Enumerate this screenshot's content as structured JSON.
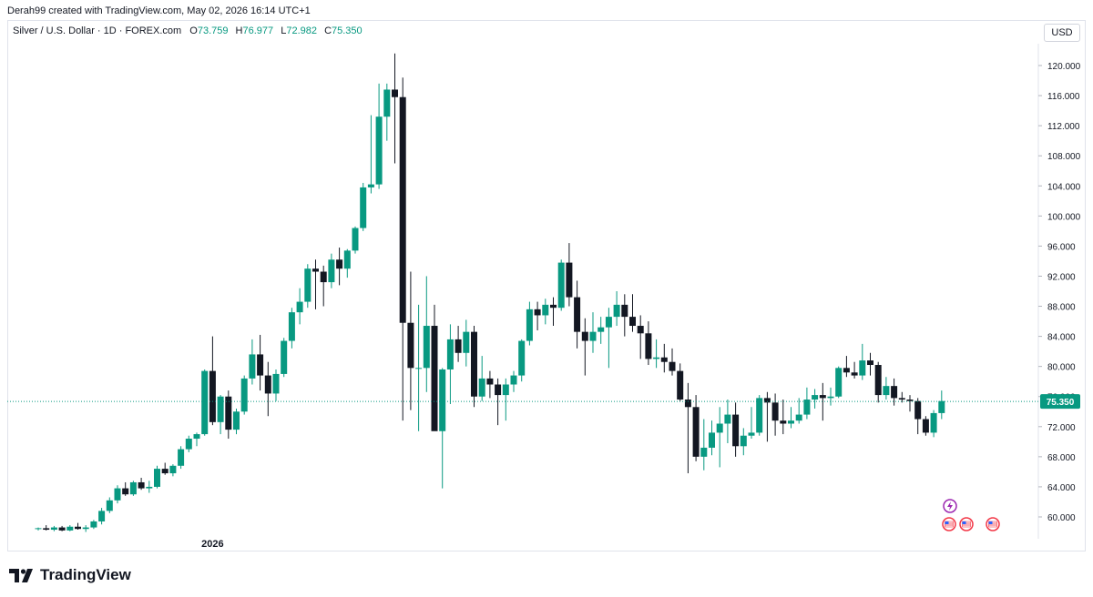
{
  "header": {
    "attribution": "Derah99 created with TradingView.com, May 02, 2026 16:14 UTC+1"
  },
  "legend": {
    "symbol": "Silver / U.S. Dollar · 1D · FOREX.com",
    "o_label": "O",
    "o_value": "73.759",
    "h_label": "H",
    "h_value": "76.977",
    "l_label": "L",
    "l_value": "72.982",
    "c_label": "C",
    "c_value": "75.350"
  },
  "currency_button": "USD",
  "footer": {
    "brand": "TradingView"
  },
  "colors": {
    "up": "#089981",
    "down": "#131722",
    "price_line": "#089981"
  },
  "chart_data": {
    "type": "candlestick",
    "x_labels": [
      {
        "index": 22,
        "label": "2026"
      }
    ],
    "y_ticks": [
      "60.000",
      "64.000",
      "68.000",
      "72.000",
      "76.000",
      "80.000",
      "84.000",
      "88.000",
      "92.000",
      "96.000",
      "100.000",
      "104.000",
      "108.000",
      "112.000",
      "116.000",
      "120.000"
    ],
    "ylim": [
      57.5,
      122.0
    ],
    "last_price": 75.35,
    "last_price_label": "75.350",
    "candles": [
      [
        58.4,
        58.6,
        58.2,
        58.5
      ],
      [
        58.5,
        58.9,
        58.2,
        58.3
      ],
      [
        58.3,
        58.8,
        58.1,
        58.6
      ],
      [
        58.6,
        58.8,
        58.1,
        58.2
      ],
      [
        58.2,
        58.9,
        58.1,
        58.7
      ],
      [
        58.7,
        59.2,
        58.3,
        58.4
      ],
      [
        58.4,
        58.9,
        58.0,
        58.6
      ],
      [
        58.6,
        59.6,
        58.4,
        59.4
      ],
      [
        59.4,
        61.2,
        59.0,
        60.8
      ],
      [
        60.8,
        62.6,
        60.5,
        62.2
      ],
      [
        62.2,
        64.2,
        61.8,
        63.8
      ],
      [
        63.8,
        64.6,
        62.8,
        63.0
      ],
      [
        63.0,
        64.8,
        62.8,
        64.6
      ],
      [
        64.6,
        65.2,
        63.6,
        63.8
      ],
      [
        63.8,
        64.8,
        63.2,
        64.0
      ],
      [
        64.0,
        66.8,
        63.8,
        66.4
      ],
      [
        66.4,
        67.2,
        65.6,
        65.8
      ],
      [
        65.8,
        67.0,
        65.4,
        66.8
      ],
      [
        66.8,
        69.4,
        66.4,
        69.0
      ],
      [
        69.0,
        70.8,
        68.6,
        70.4
      ],
      [
        70.4,
        71.2,
        69.4,
        71.0
      ],
      [
        71.0,
        79.6,
        70.8,
        79.4
      ],
      [
        79.4,
        84.0,
        72.2,
        72.6
      ],
      [
        72.6,
        76.2,
        71.0,
        76.0
      ],
      [
        76.0,
        76.8,
        70.4,
        71.6
      ],
      [
        71.6,
        74.4,
        71.0,
        74.0
      ],
      [
        74.0,
        78.8,
        73.6,
        78.4
      ],
      [
        78.4,
        83.6,
        77.6,
        81.6
      ],
      [
        81.6,
        84.2,
        76.8,
        78.8
      ],
      [
        78.8,
        80.6,
        73.4,
        76.4
      ],
      [
        76.4,
        79.6,
        75.4,
        79.0
      ],
      [
        79.0,
        83.8,
        78.6,
        83.4
      ],
      [
        83.4,
        87.8,
        82.4,
        87.2
      ],
      [
        87.2,
        90.4,
        85.6,
        88.6
      ],
      [
        88.6,
        93.6,
        87.8,
        93.0
      ],
      [
        93.0,
        94.2,
        87.6,
        92.6
      ],
      [
        92.6,
        93.4,
        88.0,
        91.2
      ],
      [
        91.2,
        95.0,
        90.4,
        94.2
      ],
      [
        94.2,
        95.8,
        90.8,
        93.0
      ],
      [
        93.0,
        95.6,
        91.8,
        95.4
      ],
      [
        95.4,
        98.6,
        95.0,
        98.4
      ],
      [
        98.4,
        104.4,
        98.0,
        103.8
      ],
      [
        103.8,
        113.4,
        103.0,
        104.2
      ],
      [
        104.2,
        117.6,
        103.6,
        113.2
      ],
      [
        113.2,
        117.6,
        110.0,
        116.8
      ],
      [
        116.8,
        121.6,
        107.0,
        115.8
      ],
      [
        115.8,
        118.4,
        72.8,
        85.8
      ],
      [
        85.8,
        92.6,
        74.2,
        79.8
      ],
      [
        79.8,
        88.2,
        71.4,
        79.8
      ],
      [
        79.8,
        92.0,
        76.6,
        85.4
      ],
      [
        85.4,
        88.2,
        71.6,
        71.4
      ],
      [
        71.4,
        79.8,
        63.8,
        79.6
      ],
      [
        79.6,
        85.6,
        75.0,
        83.6
      ],
      [
        83.6,
        85.4,
        80.6,
        81.8
      ],
      [
        81.8,
        86.2,
        80.0,
        84.6
      ],
      [
        84.6,
        85.4,
        74.6,
        76.0
      ],
      [
        76.0,
        81.4,
        75.4,
        78.4
      ],
      [
        78.4,
        79.4,
        75.8,
        77.6
      ],
      [
        77.6,
        78.4,
        72.2,
        76.2
      ],
      [
        76.2,
        78.4,
        72.8,
        77.6
      ],
      [
        77.6,
        79.4,
        76.6,
        78.8
      ],
      [
        78.8,
        83.6,
        78.0,
        83.4
      ],
      [
        83.4,
        88.6,
        82.8,
        87.6
      ],
      [
        87.6,
        88.6,
        84.8,
        86.8
      ],
      [
        86.8,
        89.0,
        85.6,
        88.2
      ],
      [
        88.2,
        89.2,
        85.4,
        87.8
      ],
      [
        87.8,
        94.2,
        87.4,
        93.8
      ],
      [
        93.8,
        96.4,
        88.0,
        89.2
      ],
      [
        89.2,
        91.4,
        82.4,
        84.6
      ],
      [
        84.6,
        86.4,
        78.8,
        83.4
      ],
      [
        83.4,
        87.2,
        81.8,
        84.6
      ],
      [
        84.6,
        86.6,
        83.0,
        85.2
      ],
      [
        85.2,
        87.8,
        79.8,
        86.6
      ],
      [
        86.6,
        90.0,
        85.4,
        88.2
      ],
      [
        88.2,
        89.6,
        84.0,
        86.6
      ],
      [
        86.6,
        89.6,
        84.6,
        85.4
      ],
      [
        85.4,
        86.8,
        81.0,
        84.4
      ],
      [
        84.4,
        86.0,
        80.2,
        81.0
      ],
      [
        81.0,
        83.6,
        79.8,
        81.2
      ],
      [
        81.2,
        83.0,
        79.2,
        80.6
      ],
      [
        80.6,
        82.4,
        78.8,
        79.4
      ],
      [
        79.4,
        80.4,
        75.4,
        75.6
      ],
      [
        75.6,
        77.8,
        65.8,
        74.6
      ],
      [
        74.6,
        76.2,
        67.4,
        68.0
      ],
      [
        68.0,
        73.0,
        66.2,
        69.2
      ],
      [
        69.2,
        72.8,
        68.2,
        71.2
      ],
      [
        71.2,
        74.6,
        66.6,
        72.4
      ],
      [
        72.4,
        75.6,
        69.8,
        73.6
      ],
      [
        73.6,
        75.2,
        68.0,
        69.4
      ],
      [
        69.4,
        71.8,
        68.2,
        70.8
      ],
      [
        70.8,
        74.6,
        70.4,
        71.2
      ],
      [
        71.2,
        76.2,
        70.8,
        75.8
      ],
      [
        75.8,
        76.6,
        70.0,
        75.2
      ],
      [
        75.2,
        76.4,
        70.8,
        72.8
      ],
      [
        72.8,
        75.6,
        71.0,
        72.4
      ],
      [
        72.4,
        74.6,
        71.8,
        72.8
      ],
      [
        72.8,
        75.8,
        72.4,
        73.6
      ],
      [
        73.6,
        77.2,
        73.0,
        75.6
      ],
      [
        75.6,
        77.0,
        74.4,
        76.2
      ],
      [
        76.2,
        77.8,
        72.8,
        75.8
      ],
      [
        75.8,
        77.2,
        74.8,
        76.0
      ],
      [
        76.0,
        80.0,
        75.8,
        79.8
      ],
      [
        79.8,
        81.4,
        78.6,
        79.2
      ],
      [
        79.2,
        80.6,
        78.4,
        78.8
      ],
      [
        78.8,
        83.0,
        78.2,
        80.8
      ],
      [
        80.8,
        81.8,
        78.8,
        80.2
      ],
      [
        80.2,
        80.6,
        75.2,
        76.2
      ],
      [
        76.2,
        78.6,
        75.6,
        77.4
      ],
      [
        77.4,
        78.4,
        74.8,
        75.8
      ],
      [
        75.8,
        76.6,
        75.2,
        75.6
      ],
      [
        75.6,
        76.2,
        74.0,
        75.4
      ],
      [
        75.4,
        75.8,
        71.0,
        73.0
      ],
      [
        73.0,
        73.4,
        70.8,
        71.2
      ],
      [
        71.2,
        74.2,
        70.6,
        73.8
      ],
      [
        73.8,
        76.8,
        73.0,
        75.4
      ]
    ]
  }
}
